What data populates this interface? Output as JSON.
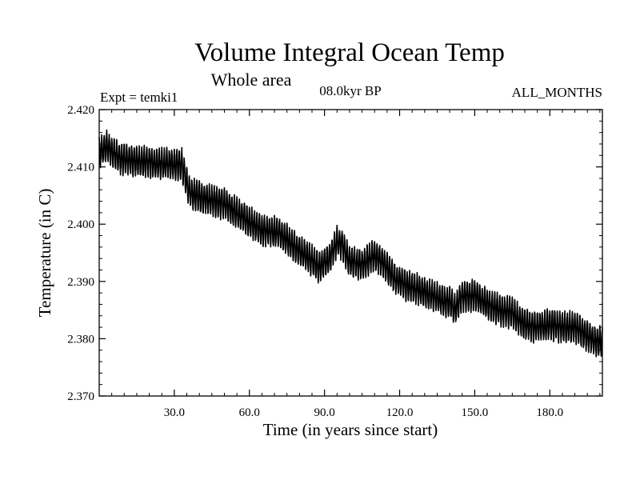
{
  "chart_data": {
    "type": "line",
    "title": "Volume Integral Ocean Temp",
    "subtitle": "Whole area",
    "experiment_label": "Expt = temki1",
    "period_label": "08.0kyr BP",
    "months_label": "ALL_MONTHS",
    "xlabel": "Time (in years since start)",
    "ylabel": "Temperature (in C)",
    "xlim": [
      0,
      201
    ],
    "ylim": [
      2.37,
      2.42
    ],
    "x_ticks": [
      30,
      60,
      90,
      120,
      150,
      180
    ],
    "x_tick_labels": [
      "30.0",
      "60.0",
      "90.0",
      "120.0",
      "150.0",
      "180.0"
    ],
    "y_ticks": [
      2.37,
      2.38,
      2.39,
      2.4,
      2.41,
      2.42
    ],
    "y_tick_labels": [
      "2.370",
      "2.380",
      "2.390",
      "2.400",
      "2.410",
      "2.420"
    ],
    "line_color": "#000000",
    "series": [
      {
        "name": "Temperature",
        "sampling": "monthly with seasonal cycle",
        "seasonal_amplitude": 0.0025,
        "envelope_x": [
          0,
          3,
          8,
          15,
          25,
          33,
          36,
          42,
          50,
          58,
          65,
          72,
          78,
          84,
          88,
          92,
          95,
          97,
          100,
          105,
          110,
          113,
          118,
          122,
          128,
          133,
          138,
          140,
          142,
          145,
          150,
          155,
          160,
          165,
          170,
          175,
          180,
          185,
          190,
          195,
          198,
          201
        ],
        "envelope_y": [
          2.4125,
          2.4135,
          2.4115,
          2.411,
          2.4105,
          2.4105,
          2.4055,
          2.4045,
          2.4035,
          2.401,
          2.399,
          2.3985,
          2.396,
          2.394,
          2.3925,
          2.394,
          2.397,
          2.3965,
          2.3935,
          2.393,
          2.3945,
          2.3935,
          2.3905,
          2.3895,
          2.3885,
          2.3875,
          2.3865,
          2.3865,
          2.385,
          2.3875,
          2.3875,
          2.386,
          2.385,
          2.3845,
          2.3825,
          2.382,
          2.3825,
          2.382,
          2.382,
          2.3805,
          2.3795,
          2.3795
        ]
      }
    ]
  }
}
